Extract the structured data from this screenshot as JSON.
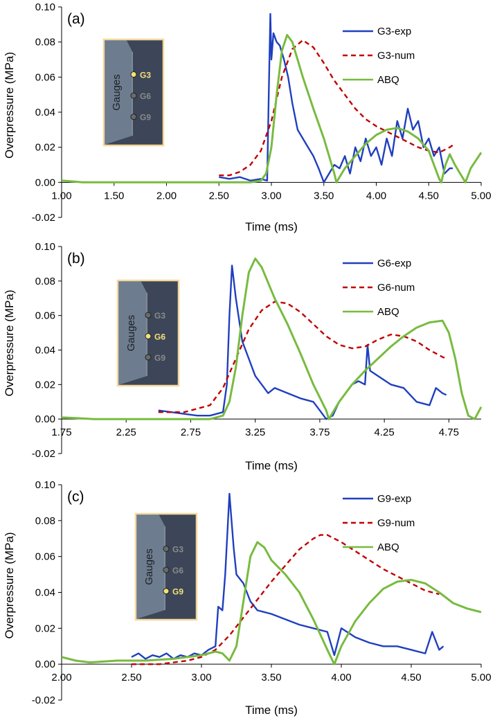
{
  "colors": {
    "exp": "#1f3fbf",
    "num": "#c00000",
    "abq": "#77bb3f",
    "axis": "#000000",
    "inset_border": "#f5d79a",
    "inset_bg": "#3c4658",
    "inset_face": "#95aabb",
    "gauge_active": "#f5e07a",
    "gauge_inactive": "#8a8a8a"
  },
  "chart_data": [
    {
      "type": "line",
      "panel_label": "(a)",
      "xlabel": "Time (ms)",
      "ylabel": "Overpressure (MPa)",
      "xlim": [
        1.0,
        5.0
      ],
      "ylim": [
        -0.02,
        0.1
      ],
      "xticks": [
        "1.00",
        "1.50",
        "2.00",
        "2.50",
        "3.00",
        "3.50",
        "4.00",
        "4.50",
        "5.00"
      ],
      "yticks": [
        "-0.02",
        "0.00",
        "0.02",
        "0.04",
        "0.06",
        "0.08",
        "0.10"
      ],
      "legend": {
        "position": "top-right",
        "entries": [
          "G3-exp",
          "G3-num",
          "ABQ"
        ]
      },
      "inset": {
        "side_label": "Gauges",
        "gauges": [
          "G3",
          "G6",
          "G9"
        ],
        "active": "G3"
      },
      "series": [
        {
          "name": "G3-exp",
          "style": "solid",
          "color_key": "exp",
          "x": [
            2.5,
            2.6,
            2.7,
            2.8,
            2.9,
            2.96,
            2.975,
            2.99,
            3.0,
            3.02,
            3.05,
            3.08,
            3.12,
            3.16,
            3.2,
            3.25,
            3.3,
            3.35,
            3.4,
            3.45,
            3.5,
            3.55,
            3.6,
            3.65,
            3.7,
            3.75,
            3.8,
            3.85,
            3.9,
            3.95,
            4.0,
            4.05,
            4.1,
            4.15,
            4.2,
            4.25,
            4.3,
            4.35,
            4.4,
            4.45,
            4.5,
            4.55,
            4.6,
            4.65,
            4.7,
            4.73
          ],
          "y": [
            0.003,
            0.002,
            0.003,
            0.001,
            0.002,
            0.001,
            0.05,
            0.096,
            0.07,
            0.085,
            0.08,
            0.078,
            0.07,
            0.06,
            0.045,
            0.03,
            0.025,
            0.02,
            0.015,
            0.008,
            0.0,
            0.005,
            0.01,
            0.008,
            0.015,
            0.005,
            0.02,
            0.012,
            0.025,
            0.015,
            0.02,
            0.01,
            0.025,
            0.015,
            0.035,
            0.025,
            0.042,
            0.03,
            0.035,
            0.02,
            0.025,
            0.015,
            0.02,
            0.005,
            0.008,
            0.008
          ]
        },
        {
          "name": "G3-num",
          "style": "dashed",
          "color_key": "num",
          "x": [
            2.5,
            2.6,
            2.7,
            2.8,
            2.9,
            3.0,
            3.1,
            3.2,
            3.3,
            3.4,
            3.5,
            3.6,
            3.7,
            3.8,
            3.9,
            4.0,
            4.1,
            4.2,
            4.3,
            4.4,
            4.5,
            4.6,
            4.7,
            4.75
          ],
          "y": [
            0.004,
            0.004,
            0.006,
            0.01,
            0.018,
            0.035,
            0.06,
            0.076,
            0.081,
            0.077,
            0.068,
            0.058,
            0.05,
            0.042,
            0.036,
            0.032,
            0.029,
            0.026,
            0.023,
            0.02,
            0.018,
            0.017,
            0.02,
            0.022
          ]
        },
        {
          "name": "ABQ",
          "style": "solid",
          "color_key": "abq",
          "x": [
            1.0,
            1.2,
            1.5,
            2.0,
            2.5,
            2.8,
            2.9,
            2.95,
            3.0,
            3.05,
            3.1,
            3.15,
            3.2,
            3.3,
            3.4,
            3.5,
            3.6,
            3.62,
            3.7,
            3.8,
            3.9,
            4.0,
            4.1,
            4.2,
            4.3,
            4.4,
            4.5,
            4.55,
            4.6,
            4.62,
            4.66,
            4.7,
            4.75,
            4.8,
            4.85,
            4.9,
            5.0
          ],
          "y": [
            0.001,
            0.0,
            0.0,
            0.0,
            0.0,
            0.0,
            0.001,
            0.005,
            0.02,
            0.05,
            0.075,
            0.084,
            0.08,
            0.06,
            0.042,
            0.025,
            0.005,
            0.0,
            0.008,
            0.015,
            0.022,
            0.027,
            0.03,
            0.031,
            0.029,
            0.025,
            0.018,
            0.01,
            0.002,
            0.0,
            0.01,
            0.016,
            0.01,
            0.005,
            0.0,
            0.008,
            0.017
          ]
        }
      ]
    },
    {
      "type": "line",
      "panel_label": "(b)",
      "xlabel": "Time (ms)",
      "ylabel": "Overpressure (MPa)",
      "xlim": [
        1.75,
        5.0
      ],
      "ylim": [
        -0.02,
        0.1
      ],
      "xticks": [
        "1.75",
        "2.25",
        "2.75",
        "3.25",
        "3.75",
        "4.25",
        "4.75"
      ],
      "yticks": [
        "-0.02",
        "0.00",
        "0.02",
        "0.04",
        "0.06",
        "0.08",
        "0.10"
      ],
      "legend": {
        "position": "top-right",
        "entries": [
          "G6-exp",
          "G6-num",
          "ABQ"
        ]
      },
      "inset": {
        "side_label": "Gauges",
        "gauges": [
          "G3",
          "G6",
          "G9"
        ],
        "active": "G6"
      },
      "series": [
        {
          "name": "G6-exp",
          "style": "solid",
          "color_key": "exp",
          "x": [
            2.5,
            2.6,
            2.7,
            2.8,
            2.9,
            3.0,
            3.03,
            3.05,
            3.07,
            3.1,
            3.15,
            3.2,
            3.25,
            3.3,
            3.35,
            3.4,
            3.5,
            3.6,
            3.7,
            3.75,
            3.8,
            3.85,
            3.9,
            3.95,
            4.0,
            4.05,
            4.1,
            4.12,
            4.14,
            4.2,
            4.3,
            4.4,
            4.5,
            4.6,
            4.65,
            4.7,
            4.73
          ],
          "y": [
            0.005,
            0.004,
            0.003,
            0.002,
            0.002,
            0.004,
            0.02,
            0.06,
            0.089,
            0.07,
            0.045,
            0.035,
            0.025,
            0.02,
            0.015,
            0.018,
            0.015,
            0.012,
            0.01,
            0.005,
            0.0,
            0.002,
            0.01,
            0.015,
            0.02,
            0.022,
            0.02,
            0.043,
            0.028,
            0.025,
            0.02,
            0.018,
            0.01,
            0.008,
            0.018,
            0.015,
            0.014
          ]
        },
        {
          "name": "G6-num",
          "style": "dashed",
          "color_key": "num",
          "x": [
            2.5,
            2.7,
            2.9,
            3.0,
            3.1,
            3.2,
            3.3,
            3.4,
            3.5,
            3.6,
            3.7,
            3.8,
            3.9,
            4.0,
            4.1,
            4.2,
            4.3,
            4.4,
            4.5,
            4.6,
            4.7,
            4.73
          ],
          "y": [
            0.004,
            0.004,
            0.008,
            0.018,
            0.035,
            0.052,
            0.063,
            0.068,
            0.067,
            0.062,
            0.055,
            0.048,
            0.043,
            0.041,
            0.042,
            0.046,
            0.049,
            0.048,
            0.045,
            0.04,
            0.036,
            0.035
          ]
        },
        {
          "name": "ABQ",
          "style": "solid",
          "color_key": "abq",
          "x": [
            1.75,
            2.0,
            2.5,
            2.9,
            3.0,
            3.05,
            3.1,
            3.15,
            3.2,
            3.25,
            3.3,
            3.4,
            3.5,
            3.6,
            3.7,
            3.8,
            3.82,
            3.9,
            4.0,
            4.1,
            4.2,
            4.3,
            4.4,
            4.5,
            4.6,
            4.7,
            4.75,
            4.8,
            4.85,
            4.9,
            4.95,
            5.0
          ],
          "y": [
            0.001,
            0.0,
            0.0,
            0.0,
            0.002,
            0.01,
            0.03,
            0.06,
            0.085,
            0.093,
            0.088,
            0.07,
            0.055,
            0.038,
            0.02,
            0.005,
            0.0,
            0.01,
            0.02,
            0.028,
            0.035,
            0.042,
            0.048,
            0.053,
            0.056,
            0.057,
            0.05,
            0.035,
            0.015,
            0.002,
            0.0,
            0.007
          ]
        }
      ]
    },
    {
      "type": "line",
      "panel_label": "(c)",
      "xlabel": "Time (ms)",
      "ylabel": "Overpressure (MPa)",
      "xlim": [
        2.0,
        5.0
      ],
      "ylim": [
        -0.02,
        0.1
      ],
      "xticks": [
        "2.00",
        "2.50",
        "3.00",
        "3.50",
        "4.00",
        "4.50",
        "5.00"
      ],
      "yticks": [
        "-0.02",
        "0.00",
        "0.02",
        "0.04",
        "0.06",
        "0.08",
        "0.10"
      ],
      "legend": {
        "position": "top-right",
        "entries": [
          "G9-exp",
          "G9-num",
          "ABQ"
        ]
      },
      "inset": {
        "side_label": "Gauges",
        "gauges": [
          "G3",
          "G6",
          "G9"
        ],
        "active": "G9"
      },
      "series": [
        {
          "name": "G9-exp",
          "style": "solid",
          "color_key": "exp",
          "x": [
            2.5,
            2.55,
            2.6,
            2.65,
            2.7,
            2.75,
            2.8,
            2.85,
            2.9,
            2.95,
            3.0,
            3.05,
            3.1,
            3.12,
            3.15,
            3.17,
            3.2,
            3.23,
            3.25,
            3.3,
            3.35,
            3.4,
            3.5,
            3.6,
            3.7,
            3.8,
            3.9,
            3.95,
            4.0,
            4.1,
            4.2,
            4.3,
            4.4,
            4.5,
            4.6,
            4.65,
            4.7,
            4.73
          ],
          "y": [
            0.004,
            0.006,
            0.003,
            0.005,
            0.004,
            0.006,
            0.003,
            0.005,
            0.004,
            0.006,
            0.005,
            0.008,
            0.01,
            0.032,
            0.03,
            0.05,
            0.095,
            0.065,
            0.05,
            0.045,
            0.035,
            0.03,
            0.028,
            0.025,
            0.022,
            0.02,
            0.018,
            0.005,
            0.02,
            0.015,
            0.012,
            0.01,
            0.01,
            0.008,
            0.006,
            0.018,
            0.008,
            0.01
          ]
        },
        {
          "name": "G9-num",
          "style": "dashed",
          "color_key": "num",
          "x": [
            2.5,
            2.7,
            2.9,
            3.0,
            3.1,
            3.2,
            3.3,
            3.4,
            3.5,
            3.6,
            3.7,
            3.8,
            3.85,
            3.9,
            4.0,
            4.1,
            4.2,
            4.3,
            4.4,
            4.5,
            4.6,
            4.7
          ],
          "y": [
            0.0,
            0.0,
            0.002,
            0.004,
            0.008,
            0.016,
            0.026,
            0.036,
            0.046,
            0.055,
            0.064,
            0.07,
            0.072,
            0.072,
            0.068,
            0.063,
            0.058,
            0.053,
            0.049,
            0.045,
            0.041,
            0.039
          ]
        },
        {
          "name": "ABQ",
          "style": "solid",
          "color_key": "abq",
          "x": [
            2.0,
            2.1,
            2.2,
            2.4,
            2.6,
            2.8,
            3.0,
            3.1,
            3.15,
            3.2,
            3.25,
            3.3,
            3.35,
            3.4,
            3.45,
            3.5,
            3.6,
            3.7,
            3.8,
            3.9,
            3.95,
            4.0,
            4.1,
            4.2,
            4.3,
            4.4,
            4.5,
            4.6,
            4.7,
            4.8,
            4.9,
            5.0
          ],
          "y": [
            0.004,
            0.002,
            0.001,
            0.002,
            0.002,
            0.003,
            0.005,
            0.007,
            0.006,
            0.002,
            0.01,
            0.035,
            0.06,
            0.068,
            0.065,
            0.058,
            0.05,
            0.04,
            0.025,
            0.008,
            0.0,
            0.01,
            0.024,
            0.034,
            0.042,
            0.046,
            0.047,
            0.045,
            0.04,
            0.034,
            0.031,
            0.029
          ]
        }
      ]
    }
  ]
}
